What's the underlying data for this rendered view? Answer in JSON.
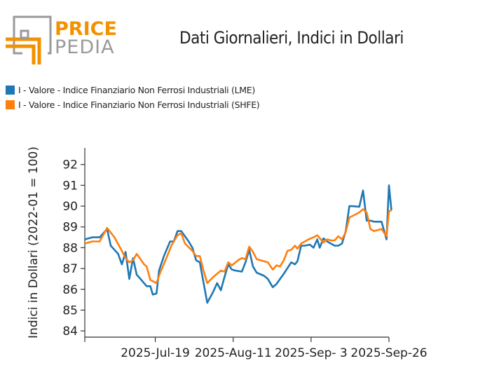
{
  "brand": {
    "line1": "PRICE",
    "line2": "PEDIA",
    "accent": "#f39200",
    "gray": "#9a9a9a"
  },
  "chart_data": {
    "type": "line",
    "title": "Dati Giornalieri, Indici in Dollari",
    "xlabel": "",
    "ylabel": "Indici in Dollari (2022-01 = 100)",
    "ylim": [
      83.7,
      92.8
    ],
    "yticks": [
      84,
      85,
      86,
      87,
      88,
      89,
      90,
      91,
      92
    ],
    "xticks": [
      {
        "label": "2025-Jul-19",
        "x": 2025.548
      },
      {
        "label": "2025-Aug-11",
        "x": 2025.611
      },
      {
        "label": "2025-Sep- 3",
        "x": 2025.674
      },
      {
        "label": "2025-Sep-26",
        "x": 2025.737
      }
    ],
    "xlim": [
      2025.491,
      2025.737
    ],
    "legend_position": "top-left",
    "grid": false,
    "series": [
      {
        "name": "I - Valore - Indice Finanziario Non Ferrosi Industriali (LME)",
        "color": "#1f77b4",
        "points": [
          [
            2025.491,
            88.4
          ],
          [
            2025.497,
            88.5
          ],
          [
            2025.503,
            88.5
          ],
          [
            2025.509,
            88.9
          ],
          [
            2025.512,
            88.1
          ],
          [
            2025.518,
            87.7
          ],
          [
            2025.521,
            87.2
          ],
          [
            2025.524,
            87.8
          ],
          [
            2025.527,
            86.5
          ],
          [
            2025.53,
            87.5
          ],
          [
            2025.533,
            86.7
          ],
          [
            2025.536,
            86.5
          ],
          [
            2025.541,
            86.15
          ],
          [
            2025.544,
            86.15
          ],
          [
            2025.546,
            85.75
          ],
          [
            2025.549,
            85.8
          ],
          [
            2025.551,
            86.9
          ],
          [
            2025.555,
            87.6
          ],
          [
            2025.56,
            88.3
          ],
          [
            2025.563,
            88.3
          ],
          [
            2025.566,
            88.8
          ],
          [
            2025.569,
            88.8
          ],
          [
            2025.575,
            88.3
          ],
          [
            2025.578,
            88.0
          ],
          [
            2025.581,
            87.4
          ],
          [
            2025.584,
            87.3
          ],
          [
            2025.59,
            85.35
          ],
          [
            2025.595,
            85.9
          ],
          [
            2025.598,
            86.3
          ],
          [
            2025.601,
            85.95
          ],
          [
            2025.604,
            86.6
          ],
          [
            2025.607,
            87.2
          ],
          [
            2025.61,
            86.95
          ],
          [
            2025.613,
            86.9
          ],
          [
            2025.618,
            86.85
          ],
          [
            2025.621,
            87.3
          ],
          [
            2025.624,
            87.9
          ],
          [
            2025.627,
            87.1
          ],
          [
            2025.63,
            86.8
          ],
          [
            2025.636,
            86.65
          ],
          [
            2025.639,
            86.5
          ],
          [
            2025.643,
            86.1
          ],
          [
            2025.646,
            86.25
          ],
          [
            2025.649,
            86.5
          ],
          [
            2025.652,
            86.75
          ],
          [
            2025.658,
            87.3
          ],
          [
            2025.661,
            87.2
          ],
          [
            2025.663,
            87.35
          ],
          [
            2025.666,
            88.1
          ],
          [
            2025.669,
            88.1
          ],
          [
            2025.673,
            88.15
          ],
          [
            2025.676,
            88.0
          ],
          [
            2025.679,
            88.4
          ],
          [
            2025.681,
            88.0
          ],
          [
            2025.684,
            88.45
          ],
          [
            2025.687,
            88.3
          ],
          [
            2025.69,
            88.2
          ],
          [
            2025.693,
            88.1
          ],
          [
            2025.696,
            88.1
          ],
          [
            2025.699,
            88.2
          ],
          [
            2025.702,
            88.8
          ],
          [
            2025.705,
            90.0
          ],
          [
            2025.707,
            90.0
          ],
          [
            2025.713,
            89.97
          ],
          [
            2025.716,
            90.75
          ],
          [
            2025.719,
            89.3
          ],
          [
            2025.722,
            89.3
          ],
          [
            2025.725,
            89.25
          ],
          [
            2025.731,
            89.25
          ],
          [
            2025.735,
            88.4
          ],
          [
            2025.737,
            91.0
          ],
          [
            2025.739,
            89.8
          ]
        ]
      },
      {
        "name": "I - Valore - Indice Finanziario Non Ferrosi Industriali (SHFE)",
        "color": "#ff7f0e",
        "points": [
          [
            2025.491,
            88.2
          ],
          [
            2025.497,
            88.3
          ],
          [
            2025.503,
            88.3
          ],
          [
            2025.509,
            88.95
          ],
          [
            2025.515,
            88.5
          ],
          [
            2025.521,
            87.85
          ],
          [
            2025.524,
            87.5
          ],
          [
            2025.527,
            87.3
          ],
          [
            2025.53,
            87.4
          ],
          [
            2025.533,
            87.7
          ],
          [
            2025.539,
            87.2
          ],
          [
            2025.541,
            87.1
          ],
          [
            2025.544,
            86.45
          ],
          [
            2025.549,
            86.3
          ],
          [
            2025.552,
            86.8
          ],
          [
            2025.557,
            87.5
          ],
          [
            2025.561,
            88.1
          ],
          [
            2025.566,
            88.6
          ],
          [
            2025.569,
            88.7
          ],
          [
            2025.572,
            88.2
          ],
          [
            2025.578,
            87.85
          ],
          [
            2025.581,
            87.6
          ],
          [
            2025.584,
            87.6
          ],
          [
            2025.587,
            86.9
          ],
          [
            2025.59,
            86.3
          ],
          [
            2025.595,
            86.6
          ],
          [
            2025.601,
            86.9
          ],
          [
            2025.604,
            86.85
          ],
          [
            2025.607,
            87.3
          ],
          [
            2025.61,
            87.15
          ],
          [
            2025.615,
            87.4
          ],
          [
            2025.618,
            87.5
          ],
          [
            2025.621,
            87.45
          ],
          [
            2025.624,
            88.05
          ],
          [
            2025.627,
            87.8
          ],
          [
            2025.63,
            87.45
          ],
          [
            2025.636,
            87.35
          ],
          [
            2025.639,
            87.3
          ],
          [
            2025.643,
            86.95
          ],
          [
            2025.646,
            87.15
          ],
          [
            2025.649,
            87.1
          ],
          [
            2025.652,
            87.4
          ],
          [
            2025.655,
            87.85
          ],
          [
            2025.658,
            87.9
          ],
          [
            2025.661,
            88.1
          ],
          [
            2025.663,
            87.95
          ],
          [
            2025.666,
            88.2
          ],
          [
            2025.672,
            88.4
          ],
          [
            2025.676,
            88.5
          ],
          [
            2025.679,
            88.6
          ],
          [
            2025.684,
            88.25
          ],
          [
            2025.687,
            88.4
          ],
          [
            2025.69,
            88.35
          ],
          [
            2025.693,
            88.35
          ],
          [
            2025.696,
            88.55
          ],
          [
            2025.699,
            88.4
          ],
          [
            2025.702,
            88.75
          ],
          [
            2025.705,
            89.45
          ],
          [
            2025.71,
            89.6
          ],
          [
            2025.713,
            89.7
          ],
          [
            2025.716,
            89.85
          ],
          [
            2025.719,
            89.7
          ],
          [
            2025.722,
            88.9
          ],
          [
            2025.725,
            88.8
          ],
          [
            2025.731,
            88.9
          ],
          [
            2025.735,
            88.55
          ],
          [
            2025.737,
            89.75
          ],
          [
            2025.739,
            89.8
          ]
        ]
      }
    ]
  }
}
